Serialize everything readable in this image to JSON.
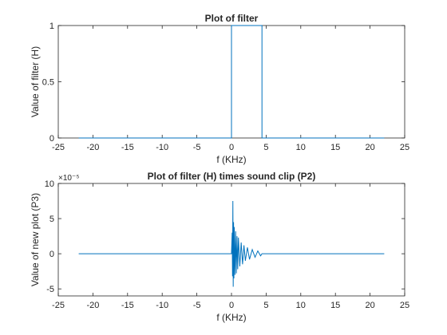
{
  "colors": {
    "line": "#0072BD",
    "axis": "#262626",
    "background": "#ffffff"
  },
  "chart_data": [
    {
      "type": "line",
      "title": "Plot of filter",
      "xlabel": "f (KHz)",
      "ylabel": "Value of filter (H)",
      "xlim": [
        -25,
        25
      ],
      "ylim": [
        0,
        1
      ],
      "xticks": [
        -25,
        -20,
        -15,
        -10,
        -5,
        0,
        5,
        10,
        15,
        20,
        25
      ],
      "yticks": [
        0,
        0.5,
        1
      ],
      "ytick_labels": [
        "0",
        "0.5",
        "1"
      ],
      "grid": false,
      "series": [
        {
          "x": [
            -22.05,
            0.0,
            0.0,
            4.4,
            4.4,
            22.05
          ],
          "y": [
            0,
            0,
            1,
            1,
            0,
            0
          ]
        }
      ]
    },
    {
      "type": "line",
      "title": "Plot of filter (H) times sound clip (P2)",
      "xlabel": "f (KHz)",
      "ylabel": "Value of new plot (P3)",
      "y_exponent_label": "×10⁻⁵",
      "xlim": [
        -25,
        25
      ],
      "ylim": [
        -6,
        10
      ],
      "xticks": [
        -25,
        -20,
        -15,
        -10,
        -5,
        0,
        5,
        10,
        15,
        20,
        25
      ],
      "yticks": [
        -5,
        0,
        5,
        10
      ],
      "ytick_labels": [
        "-5",
        "0",
        "5",
        "10"
      ],
      "grid": false,
      "series": [
        {
          "x": [
            -22.05,
            0.0,
            0.1,
            0.15,
            0.2,
            0.25,
            0.3,
            0.35,
            0.4,
            0.5,
            0.6,
            0.7,
            0.8,
            0.9,
            1.0,
            1.2,
            1.4,
            1.6,
            1.8,
            2.0,
            2.3,
            2.6,
            3.0,
            3.4,
            3.8,
            4.2,
            4.4,
            22.05
          ],
          "y": [
            0,
            0,
            3.0,
            -3.2,
            7.5,
            -4.7,
            4.5,
            -3.5,
            3.8,
            -3.0,
            3.2,
            -2.8,
            2.5,
            -2.2,
            2.3,
            -1.8,
            1.6,
            -1.5,
            1.2,
            -1.0,
            0.9,
            -0.8,
            0.6,
            -0.5,
            0.4,
            -0.3,
            0,
            0
          ]
        }
      ]
    }
  ]
}
